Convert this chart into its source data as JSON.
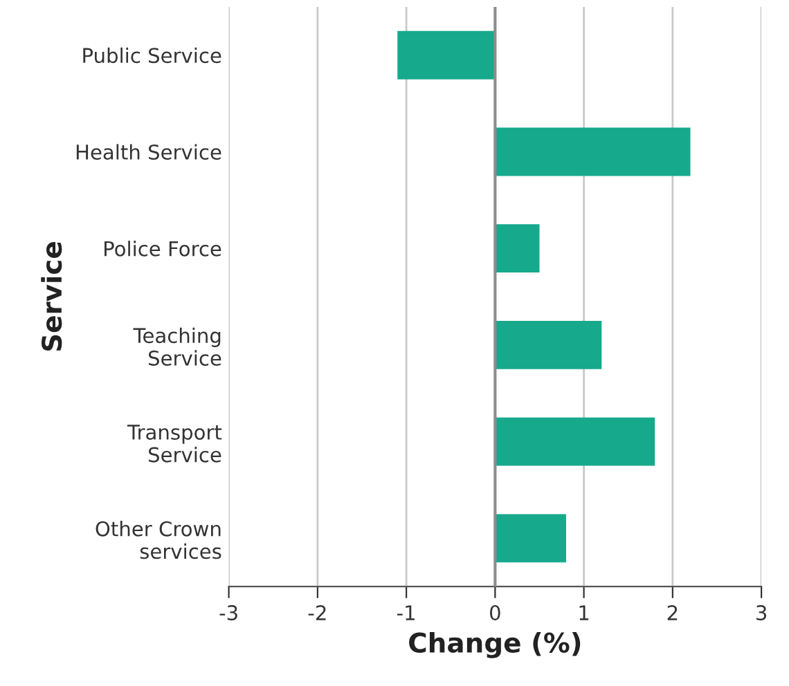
{
  "chart_data": {
    "type": "bar",
    "orientation": "horizontal",
    "xlabel": "Change (%)",
    "ylabel": "Service",
    "categories": [
      "Public Service",
      "Health Service",
      "Police Force",
      "Teaching\nService",
      "Transport\nService",
      "Other Crown\nservices"
    ],
    "values": [
      -1.1,
      2.2,
      0.5,
      1.2,
      1.8,
      0.8
    ],
    "color": "#17a98c",
    "xlim": [
      -3,
      3
    ],
    "xticks": [
      -3,
      -2,
      -1,
      0,
      1,
      2,
      3
    ],
    "grid": "x",
    "ref_lines": [
      {
        "axis": "x",
        "value": 0,
        "color": "#8c8c8c"
      }
    ]
  }
}
